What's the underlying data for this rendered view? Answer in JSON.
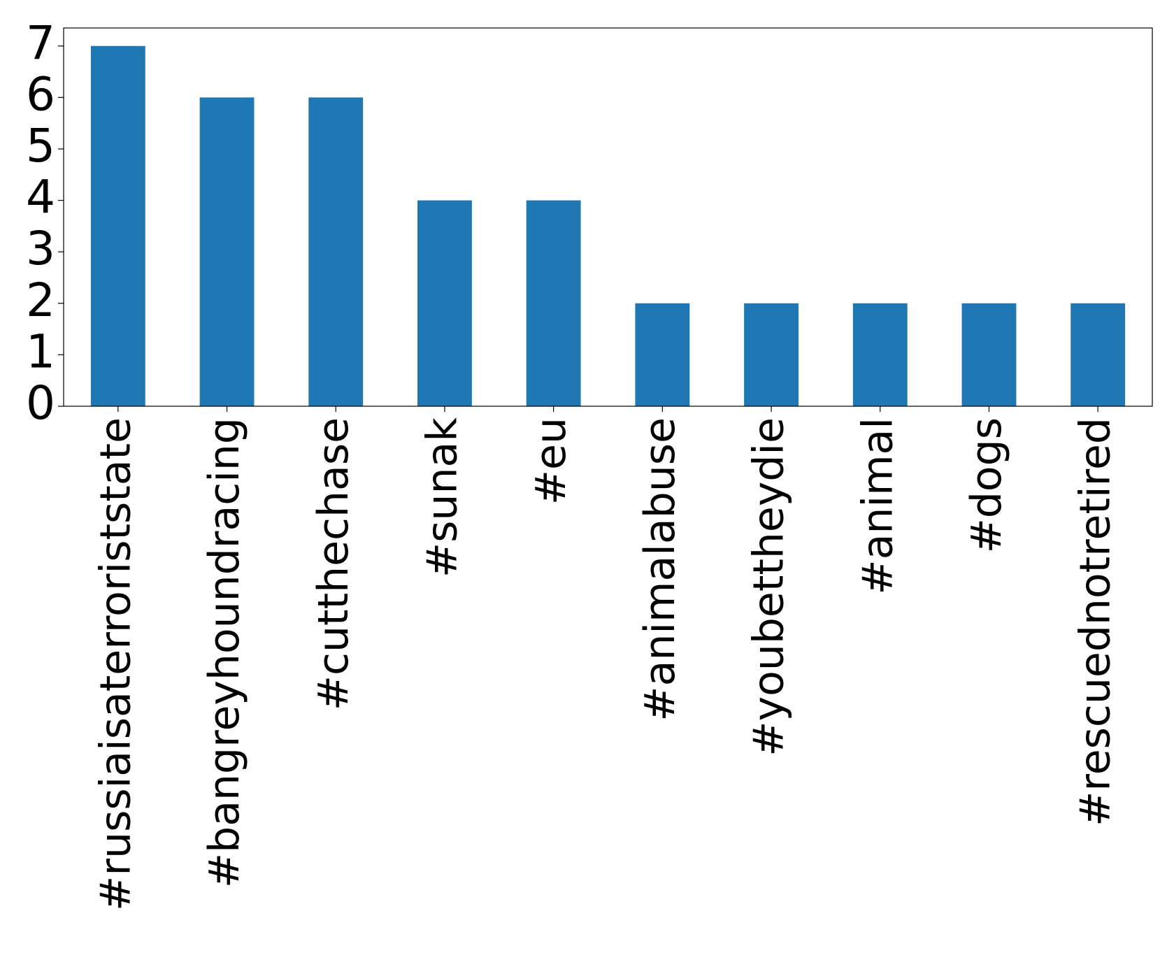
{
  "chart_data": {
    "type": "bar",
    "categories": [
      "#russiaisaterroriststate",
      "#bangreyhoundracing",
      "#cutthechase",
      "#sunak",
      "#eu",
      "#animalabuse",
      "#youbettheydie",
      "#animal",
      "#dogs",
      "#rescuednotretired"
    ],
    "values": [
      7,
      6,
      6,
      4,
      4,
      2,
      2,
      2,
      2,
      2
    ],
    "color": "#1f77b4",
    "ylim": [
      0,
      7.35
    ],
    "yticks": [
      0,
      1,
      2,
      3,
      4,
      5,
      6,
      7
    ],
    "grid": false
  }
}
